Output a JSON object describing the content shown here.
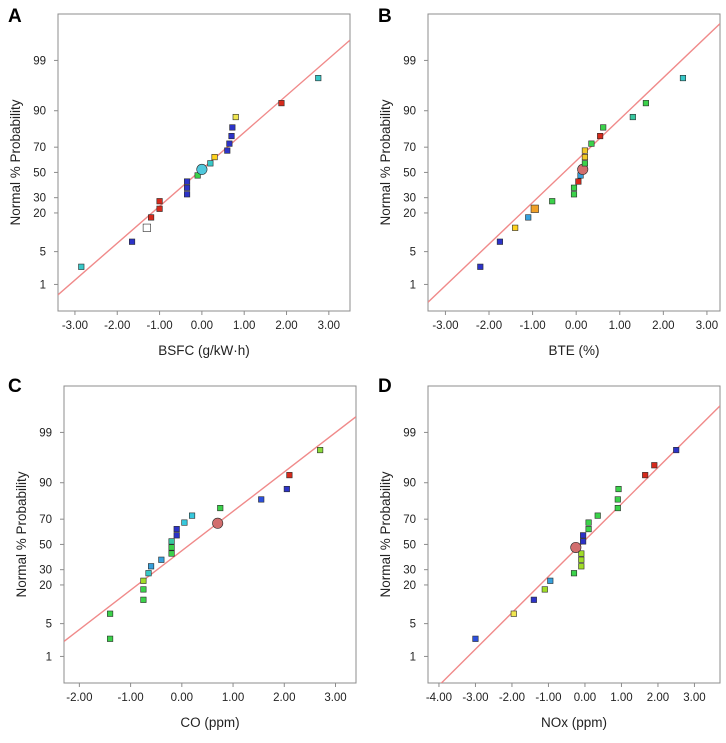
{
  "chart_data": [
    {
      "panel": "A",
      "type": "scatter",
      "xlabel": "BSFC (g/kW·h)",
      "ylabel": "Normal % Probability",
      "xlim": [
        -3.4,
        3.5
      ],
      "ylim": [
        0.2,
        99.95
      ],
      "x_ticks": [
        "-3.00",
        "-2.00",
        "-1.00",
        "0.00",
        "1.00",
        "2.00",
        "3.00"
      ],
      "y_ticks": [
        "1",
        "5",
        "20",
        "30",
        "50",
        "70",
        "90",
        "99"
      ],
      "fit_line": {
        "x": [
          -3.4,
          3.5
        ],
        "prob": [
          0.55,
          99.7
        ]
      },
      "points": [
        {
          "x": -2.85,
          "prob": 2.5,
          "color": "#37c8c8",
          "size": "small"
        },
        {
          "x": -1.65,
          "prob": 7.5,
          "color": "#2c33c8",
          "size": "small"
        },
        {
          "x": -1.3,
          "prob": 12.5,
          "color": "#ffffff",
          "size": "large"
        },
        {
          "x": -1.2,
          "prob": 17.5,
          "color": "#d62a1c",
          "size": "small"
        },
        {
          "x": -1.0,
          "prob": 22.5,
          "color": "#d62a1c",
          "size": "small"
        },
        {
          "x": -1.0,
          "prob": 27.5,
          "color": "#d62a1c",
          "size": "small"
        },
        {
          "x": -0.35,
          "prob": 32.5,
          "color": "#2c33c8",
          "size": "small"
        },
        {
          "x": -0.35,
          "prob": 37.5,
          "color": "#2c33c8",
          "size": "small"
        },
        {
          "x": -0.35,
          "prob": 42.5,
          "color": "#2c33c8",
          "size": "small"
        },
        {
          "x": -0.1,
          "prob": 47.5,
          "color": "#3bd24a",
          "size": "small"
        },
        {
          "x": 0.0,
          "prob": 52.5,
          "color": "#50c8dc",
          "size": "circle"
        },
        {
          "x": 0.2,
          "prob": 57.5,
          "color": "#37c8c8",
          "size": "small"
        },
        {
          "x": 0.3,
          "prob": 62.5,
          "color": "#ffd21e",
          "size": "small"
        },
        {
          "x": 0.6,
          "prob": 67.5,
          "color": "#2c33c8",
          "size": "small"
        },
        {
          "x": 0.65,
          "prob": 72.5,
          "color": "#2c33c8",
          "size": "small"
        },
        {
          "x": 0.7,
          "prob": 77.5,
          "color": "#2c33c8",
          "size": "small"
        },
        {
          "x": 0.72,
          "prob": 82.5,
          "color": "#2c33c8",
          "size": "small"
        },
        {
          "x": 0.8,
          "prob": 87.5,
          "color": "#f0e650",
          "size": "small"
        },
        {
          "x": 1.88,
          "prob": 92.5,
          "color": "#d62a1c",
          "size": "small"
        },
        {
          "x": 2.75,
          "prob": 97.5,
          "color": "#37c8c8",
          "size": "small"
        }
      ]
    },
    {
      "panel": "B",
      "type": "scatter",
      "xlabel": "BTE (%)",
      "ylabel": "Normal % Probability",
      "xlim": [
        -3.4,
        3.3
      ],
      "ylim": [
        0.2,
        99.95
      ],
      "x_ticks": [
        "-3.00",
        "-2.00",
        "-1.00",
        "0.00",
        "1.00",
        "2.00",
        "3.00"
      ],
      "y_ticks": [
        "1",
        "5",
        "20",
        "30",
        "50",
        "70",
        "90",
        "99"
      ],
      "fit_line": {
        "x": [
          -3.4,
          3.3
        ],
        "prob": [
          0.35,
          99.9
        ]
      },
      "points": [
        {
          "x": -2.2,
          "prob": 2.5,
          "color": "#2c33c8",
          "size": "small"
        },
        {
          "x": -1.75,
          "prob": 7.5,
          "color": "#2c33c8",
          "size": "small"
        },
        {
          "x": -1.4,
          "prob": 12.5,
          "color": "#ffd21e",
          "size": "small"
        },
        {
          "x": -1.1,
          "prob": 17.5,
          "color": "#37a0dc",
          "size": "small"
        },
        {
          "x": -0.95,
          "prob": 22.5,
          "color": "#f0a028",
          "size": "large"
        },
        {
          "x": -0.55,
          "prob": 27.5,
          "color": "#3bd24a",
          "size": "small"
        },
        {
          "x": -0.05,
          "prob": 32.5,
          "color": "#3bd24a",
          "size": "small"
        },
        {
          "x": -0.05,
          "prob": 37.5,
          "color": "#3bd24a",
          "size": "small"
        },
        {
          "x": 0.05,
          "prob": 42.5,
          "color": "#d62a1c",
          "size": "small"
        },
        {
          "x": 0.1,
          "prob": 47.5,
          "color": "#37a0dc",
          "size": "small"
        },
        {
          "x": 0.15,
          "prob": 52.5,
          "color": "#d26e6e",
          "size": "circle"
        },
        {
          "x": 0.2,
          "prob": 57.5,
          "color": "#3bd24a",
          "size": "small"
        },
        {
          "x": 0.2,
          "prob": 62.5,
          "color": "#f0c828",
          "size": "small"
        },
        {
          "x": 0.2,
          "prob": 67.5,
          "color": "#f0c828",
          "size": "small"
        },
        {
          "x": 0.35,
          "prob": 72.5,
          "color": "#3bd24a",
          "size": "small"
        },
        {
          "x": 0.55,
          "prob": 77.5,
          "color": "#d62a1c",
          "size": "small"
        },
        {
          "x": 0.62,
          "prob": 82.5,
          "color": "#3bd24a",
          "size": "small"
        },
        {
          "x": 1.3,
          "prob": 87.5,
          "color": "#37c8a0",
          "size": "small"
        },
        {
          "x": 1.6,
          "prob": 92.5,
          "color": "#3bd24a",
          "size": "small"
        },
        {
          "x": 2.45,
          "prob": 97.5,
          "color": "#37c8c8",
          "size": "small"
        }
      ]
    },
    {
      "panel": "C",
      "type": "scatter",
      "xlabel": "CO (ppm)",
      "ylabel": "Normal % Probability",
      "xlim": [
        -2.3,
        3.4
      ],
      "ylim": [
        0.2,
        99.95
      ],
      "x_ticks": [
        "-2.00",
        "-1.00",
        "0.00",
        "1.00",
        "2.00",
        "3.00"
      ],
      "y_ticks": [
        "1",
        "5",
        "20",
        "30",
        "50",
        "70",
        "90",
        "99"
      ],
      "fit_line": {
        "x": [
          -2.3,
          3.4
        ],
        "prob": [
          2.2,
          99.6
        ]
      },
      "points": [
        {
          "x": -1.4,
          "prob": 2.5,
          "color": "#3bd24a",
          "size": "small"
        },
        {
          "x": -1.4,
          "prob": 7.5,
          "color": "#3bd24a",
          "size": "small"
        },
        {
          "x": -0.75,
          "prob": 12.5,
          "color": "#3bd24a",
          "size": "small"
        },
        {
          "x": -0.75,
          "prob": 17.5,
          "color": "#3bd24a",
          "size": "small"
        },
        {
          "x": -0.75,
          "prob": 22.5,
          "color": "#a0dc28",
          "size": "small"
        },
        {
          "x": -0.65,
          "prob": 27.5,
          "color": "#37c8c8",
          "size": "small"
        },
        {
          "x": -0.6,
          "prob": 32.5,
          "color": "#37a0dc",
          "size": "small"
        },
        {
          "x": -0.4,
          "prob": 37.5,
          "color": "#37a0dc",
          "size": "small"
        },
        {
          "x": -0.2,
          "prob": 42.5,
          "color": "#3bd24a",
          "size": "small"
        },
        {
          "x": -0.2,
          "prob": 47.5,
          "color": "#3bd24a",
          "size": "small"
        },
        {
          "x": -0.2,
          "prob": 52.5,
          "color": "#37c8a0",
          "size": "small"
        },
        {
          "x": -0.1,
          "prob": 57.5,
          "color": "#2c33c8",
          "size": "small"
        },
        {
          "x": -0.1,
          "prob": 62.5,
          "color": "#2c33c8",
          "size": "small"
        },
        {
          "x": 0.05,
          "prob": 67.5,
          "color": "#37c8dc",
          "size": "small"
        },
        {
          "x": 0.2,
          "prob": 72.5,
          "color": "#37c8dc",
          "size": "small"
        },
        {
          "x": 0.75,
          "prob": 77.5,
          "color": "#3bd24a",
          "size": "small"
        },
        {
          "x": 0.7,
          "prob": 67.0,
          "color": "#d26e6e",
          "size": "circle"
        },
        {
          "x": 1.55,
          "prob": 82.5,
          "color": "#2c50dc",
          "size": "small"
        },
        {
          "x": 2.05,
          "prob": 87.5,
          "color": "#2c33c8",
          "size": "small"
        },
        {
          "x": 2.1,
          "prob": 92.5,
          "color": "#d62a1c",
          "size": "small"
        },
        {
          "x": 2.7,
          "prob": 97.5,
          "color": "#8cdc3c",
          "size": "small"
        }
      ]
    },
    {
      "panel": "D",
      "type": "scatter",
      "xlabel": "NOx (ppm)",
      "ylabel": "Normal % Probability",
      "xlim": [
        -4.3,
        3.7
      ],
      "ylim": [
        0.2,
        99.95
      ],
      "x_ticks": [
        "-4.00",
        "-3.00",
        "-2.00",
        "-1.00",
        "0.00",
        "1.00",
        "2.00",
        "3.00"
      ],
      "y_ticks": [
        "1",
        "5",
        "20",
        "30",
        "50",
        "70",
        "90",
        "99"
      ],
      "fit_line": {
        "x": [
          -4.3,
          3.7
        ],
        "prob": [
          0.08,
          99.8
        ]
      },
      "points": [
        {
          "x": -3.0,
          "prob": 2.5,
          "color": "#2c50dc",
          "size": "small"
        },
        {
          "x": -1.95,
          "prob": 7.5,
          "color": "#f0e650",
          "size": "small"
        },
        {
          "x": -1.4,
          "prob": 12.5,
          "color": "#2c33c8",
          "size": "small"
        },
        {
          "x": -1.1,
          "prob": 17.5,
          "color": "#a0dc28",
          "size": "small"
        },
        {
          "x": -0.95,
          "prob": 22.5,
          "color": "#37a0dc",
          "size": "small"
        },
        {
          "x": -0.3,
          "prob": 27.5,
          "color": "#3bd24a",
          "size": "small"
        },
        {
          "x": -0.1,
          "prob": 32.5,
          "color": "#a0dc28",
          "size": "small"
        },
        {
          "x": -0.1,
          "prob": 37.5,
          "color": "#a0dc28",
          "size": "small"
        },
        {
          "x": -0.1,
          "prob": 42.5,
          "color": "#a0dc28",
          "size": "small"
        },
        {
          "x": -0.25,
          "prob": 47.5,
          "color": "#d26e6e",
          "size": "circle"
        },
        {
          "x": -0.05,
          "prob": 52.5,
          "color": "#2c33c8",
          "size": "small"
        },
        {
          "x": -0.05,
          "prob": 57.5,
          "color": "#2c33c8",
          "size": "small"
        },
        {
          "x": 0.1,
          "prob": 62.5,
          "color": "#3bd24a",
          "size": "small"
        },
        {
          "x": 0.1,
          "prob": 67.5,
          "color": "#3bd24a",
          "size": "small"
        },
        {
          "x": 0.35,
          "prob": 72.5,
          "color": "#3bd24a",
          "size": "small"
        },
        {
          "x": 0.9,
          "prob": 77.5,
          "color": "#3bd24a",
          "size": "small"
        },
        {
          "x": 0.9,
          "prob": 82.5,
          "color": "#3bd24a",
          "size": "small"
        },
        {
          "x": 0.92,
          "prob": 87.5,
          "color": "#3bd24a",
          "size": "small"
        },
        {
          "x": 1.65,
          "prob": 92.5,
          "color": "#d62a1c",
          "size": "small"
        },
        {
          "x": 1.9,
          "prob": 95.0,
          "color": "#d62a1c",
          "size": "small"
        },
        {
          "x": 2.5,
          "prob": 97.5,
          "color": "#2c33c8",
          "size": "small"
        }
      ]
    }
  ]
}
